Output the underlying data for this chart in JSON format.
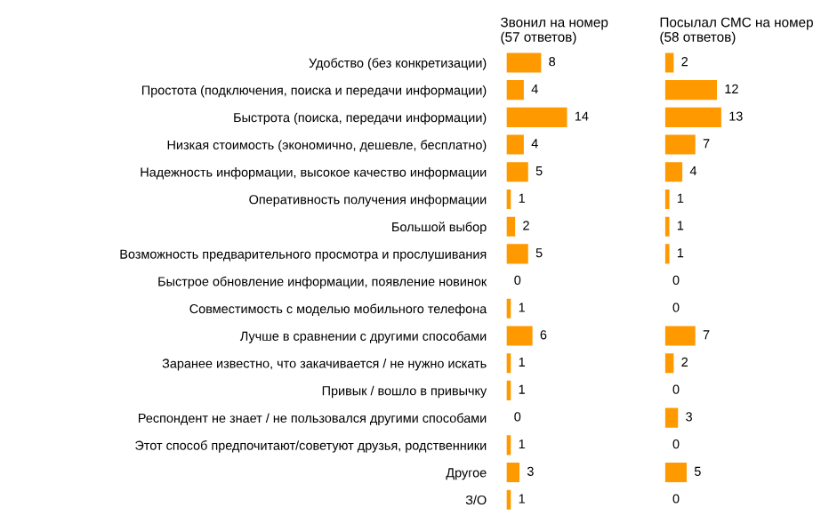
{
  "chart_data": [
    {
      "type": "bar",
      "orientation": "horizontal",
      "title": "Звонил на номер\n(57 ответов)",
      "categories": [
        "Удобство (без конкретизации)",
        "Простота (подключения, поиска и передачи информации)",
        "Быстрота (поиска, передачи информации)",
        "Низкая стоимость (экономично, дешевле, бесплатно)",
        "Надежность информации, высокое качество информации",
        "Оперативность получения информации",
        "Большой выбор",
        "Возможность предварительного просмотра и прослушивания",
        "Быстрое обновление информации, появление новинок",
        "Совместимость с моделью мобильного телефона",
        "Лучше в сравнении с другими способами",
        "Заранее известно, что закачивается / не нужно искать",
        "Привык / вошло в привычку",
        "Респондент не знает / не пользовался другими способами",
        "Этот способ предпочитают/советуют друзья, родственники",
        "Другое",
        "З/О"
      ],
      "values": [
        8,
        4,
        14,
        4,
        5,
        1,
        2,
        5,
        0,
        1,
        6,
        1,
        1,
        0,
        1,
        3,
        1
      ],
      "color": "#ff9900",
      "data_labels": true,
      "tick_labels": "y"
    },
    {
      "type": "bar",
      "orientation": "horizontal",
      "title": "Посылал СМС на номер\n(58 ответов)",
      "categories": [
        null,
        null,
        null,
        null,
        null,
        null,
        null,
        null,
        null,
        null,
        null,
        null,
        null,
        null,
        null,
        null,
        null
      ],
      "values": [
        2,
        12,
        13,
        7,
        4,
        1,
        1,
        1,
        0,
        0,
        7,
        2,
        0,
        3,
        0,
        5,
        0
      ],
      "color": "#ff9900",
      "data_labels": true,
      "tick_labels": false
    }
  ]
}
